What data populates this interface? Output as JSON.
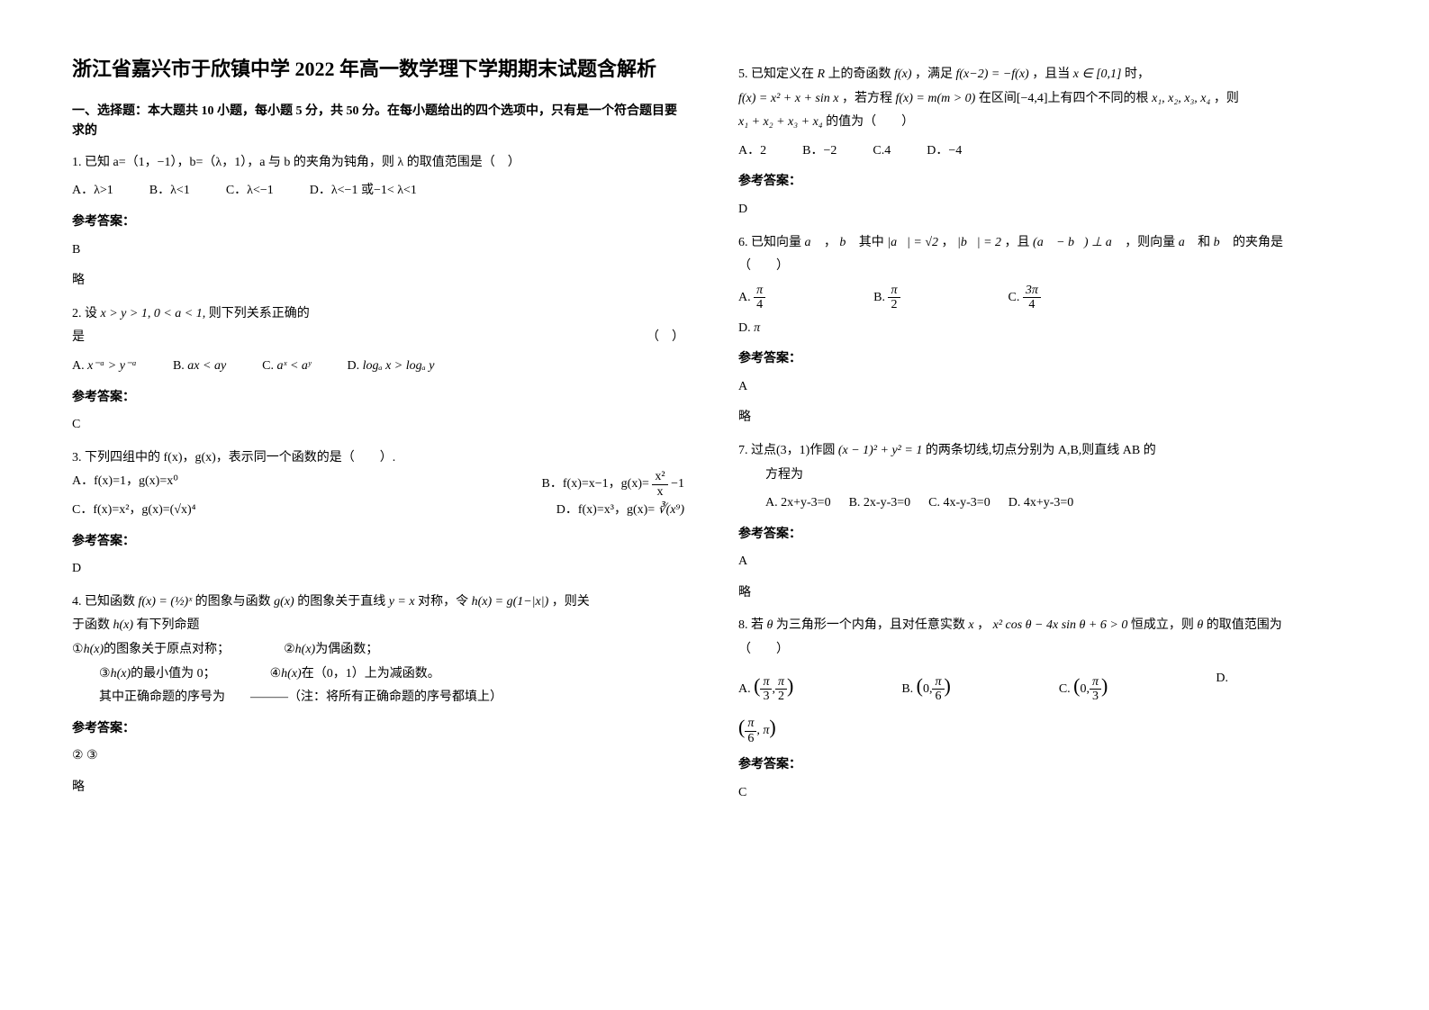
{
  "title": "浙江省嘉兴市于欣镇中学 2022 年高一数学理下学期期末试题含解析",
  "section1_header": "一、选择题：本大题共 10 小题，每小题 5 分，共 50 分。在每小题给出的四个选项中，只有是一个符合题目要求的",
  "q1": {
    "stem": "1. 已知 a=（1，−1），b=（λ，1），a 与 b 的夹角为钝角，则 λ 的取值范围是（　）",
    "optA": "A．λ>1",
    "optB": "B．λ<1",
    "optC": "C．λ<−1",
    "optD": "D．λ<−1 或−1< λ<1",
    "answer_label": "参考答案：",
    "answer": "B",
    "extra": "略"
  },
  "q2": {
    "stem_prefix": "2. 设",
    "stem_math": "x > y > 1, 0 < a < 1,",
    "stem_suffix": "则下列关系正确的",
    "stem2": "是",
    "paren": "（　）",
    "optA_pre": "A.",
    "optA_math": "x⁻ᵃ > y⁻ᵃ",
    "optB_pre": "B.",
    "optB_math": "ax < ay",
    "optC_pre": "C.",
    "optC_math": "aˣ < aʸ",
    "optD_pre": "D.",
    "optD_math": "logₐ x > logₐ y",
    "answer_label": "参考答案：",
    "answer": "C"
  },
  "q3": {
    "stem": "3. 下列四组中的 f(x)，g(x)，表示同一个函数的是（　　）.",
    "optA": "A．f(x)=1，g(x)=x⁰",
    "optB_pre": "B．f(x)=x−1，g(x)=",
    "optB_frac_num": "x²",
    "optB_frac_den": "x",
    "optB_post": " −1",
    "optC": "C．f(x)=x²，g(x)=(√x)⁴",
    "optD_pre": "D．f(x)=x³，g(x)=",
    "optD_math": "∛(x⁹)",
    "answer_label": "参考答案：",
    "answer": "D"
  },
  "q4": {
    "stem_pre": "4. 已知函数",
    "stem_math1": "f(x) = (½)ˣ",
    "stem_mid1": "的图象与函数",
    "stem_math2": "g(x)",
    "stem_mid2": "的图象关于直线",
    "stem_math3": "y = x",
    "stem_mid3": "对称，令",
    "stem_math4": "h(x) = g(1−|x|)",
    "stem_suffix": "，则关",
    "stem_line2_pre": "于函数",
    "stem_line2_math": "h(x)",
    "stem_line2_suffix": "有下列命题",
    "p1_pre": "①",
    "p1_math": "h(x)",
    "p1_suffix": "的图象关于原点对称；",
    "p2_pre": "②",
    "p2_math": "h(x)",
    "p2_suffix": "为偶函数；",
    "p3_pre": "③",
    "p3_math": "h(x)",
    "p3_suffix": "的最小值为 0；",
    "p4_pre": "④",
    "p4_math": "h(x)",
    "p4_suffix": "在（0，1）上为减函数。",
    "note": "其中正确命题的序号为　　———（注：将所有正确命题的序号都填上）",
    "answer_label": "参考答案：",
    "answer": "② ③",
    "extra": "略"
  },
  "q5": {
    "stem_pre": "5. 已知定义在",
    "stem_math1": "R",
    "stem_mid1": "上的奇函数",
    "stem_math2": "f(x)",
    "stem_mid2": "，满足",
    "stem_math3": "f(x−2) = −f(x)",
    "stem_mid3": "，且当",
    "stem_math4": "x ∈ [0,1]",
    "stem_suffix": "时，",
    "line2_math1": "f(x) = x² + x + sin x",
    "line2_mid": "，若方程",
    "line2_math2": "f(x) = m(m > 0)",
    "line2_suffix": "在区间[−4,4]上有四个不同的根",
    "line2_math3": "x₁, x₂, x₃, x₄",
    "line2_post": "，则",
    "line3_math": "x₁ + x₂ + x₃ + x₄",
    "line3_suffix": "的值为（　　）",
    "optA": "A．2",
    "optB": "B．−2",
    "optC": "C.4",
    "optD": "D．−4",
    "answer_label": "参考答案：",
    "answer": "D"
  },
  "q6": {
    "stem_pre": "6. 已知向量",
    "stem_math1": "a⃗",
    "stem_mid1": "，",
    "stem_math2": "b⃗",
    "stem_mid2": "其中",
    "stem_math3": "|a⃗| = √2",
    "stem_mid3": "，",
    "stem_math4": "|b⃗| = 2",
    "stem_mid4": "，且",
    "stem_math5": "(a⃗ − b⃗) ⊥ a⃗",
    "stem_mid5": "，则向量",
    "stem_math6": "a⃗",
    "stem_mid6": "和",
    "stem_math7": "b⃗",
    "stem_suffix": "的夹角是",
    "paren": "（　　）",
    "optA_pre": "A.",
    "optA_num": "π",
    "optA_den": "4",
    "optB_pre": "B.",
    "optB_num": "π",
    "optB_den": "2",
    "optC_pre": "C.",
    "optC_num": "3π",
    "optC_den": "4",
    "optD_pre": "D.",
    "optD_math": "π",
    "answer_label": "参考答案：",
    "answer": "A",
    "extra": "略"
  },
  "q7": {
    "stem_pre": "7. 过点(3，1)作圆",
    "stem_math": "(x − 1)² + y² = 1",
    "stem_suffix": "的两条切线,切点分别为 A,B,则直线 AB 的",
    "line2": "方程为",
    "optA": "A. 2x+y-3=0",
    "optB": "B. 2x-y-3=0",
    "optC": "C. 4x-y-3=0",
    "optD": "D. 4x+y-3=0",
    "answer_label": "参考答案：",
    "answer": "A",
    "extra": "略"
  },
  "q8": {
    "stem_pre": "8. 若",
    "stem_math1": "θ",
    "stem_mid1": "为三角形一个内角，且对任意实数",
    "stem_math2": "x",
    "stem_mid2": "，",
    "stem_math3": "x² cos θ − 4x sin θ + 6 > 0",
    "stem_mid3": "恒成立，则",
    "stem_math4": "θ",
    "stem_suffix": "的取值范围为",
    "paren": "（　　）",
    "optA_pre": "A.",
    "optA_open": "(",
    "optA_num1": "π",
    "optA_den1": "3",
    "optA_comma": ",",
    "optA_num2": "π",
    "optA_den2": "2",
    "optA_close": ")",
    "optB_pre": "B.",
    "optB_open": "(",
    "optB_a": "0,",
    "optB_num": "π",
    "optB_den": "6",
    "optB_close": ")",
    "optC_pre": "C.",
    "optC_open": "(",
    "optC_a": "0,",
    "optC_num": "π",
    "optC_den": "3",
    "optC_close": ")",
    "optD_pre": "D.",
    "optD_open": "(",
    "optD_num": "π",
    "optD_den": "6",
    "optD_comma": ", π",
    "optD_close": ")",
    "answer_label": "参考答案：",
    "answer": "C"
  }
}
